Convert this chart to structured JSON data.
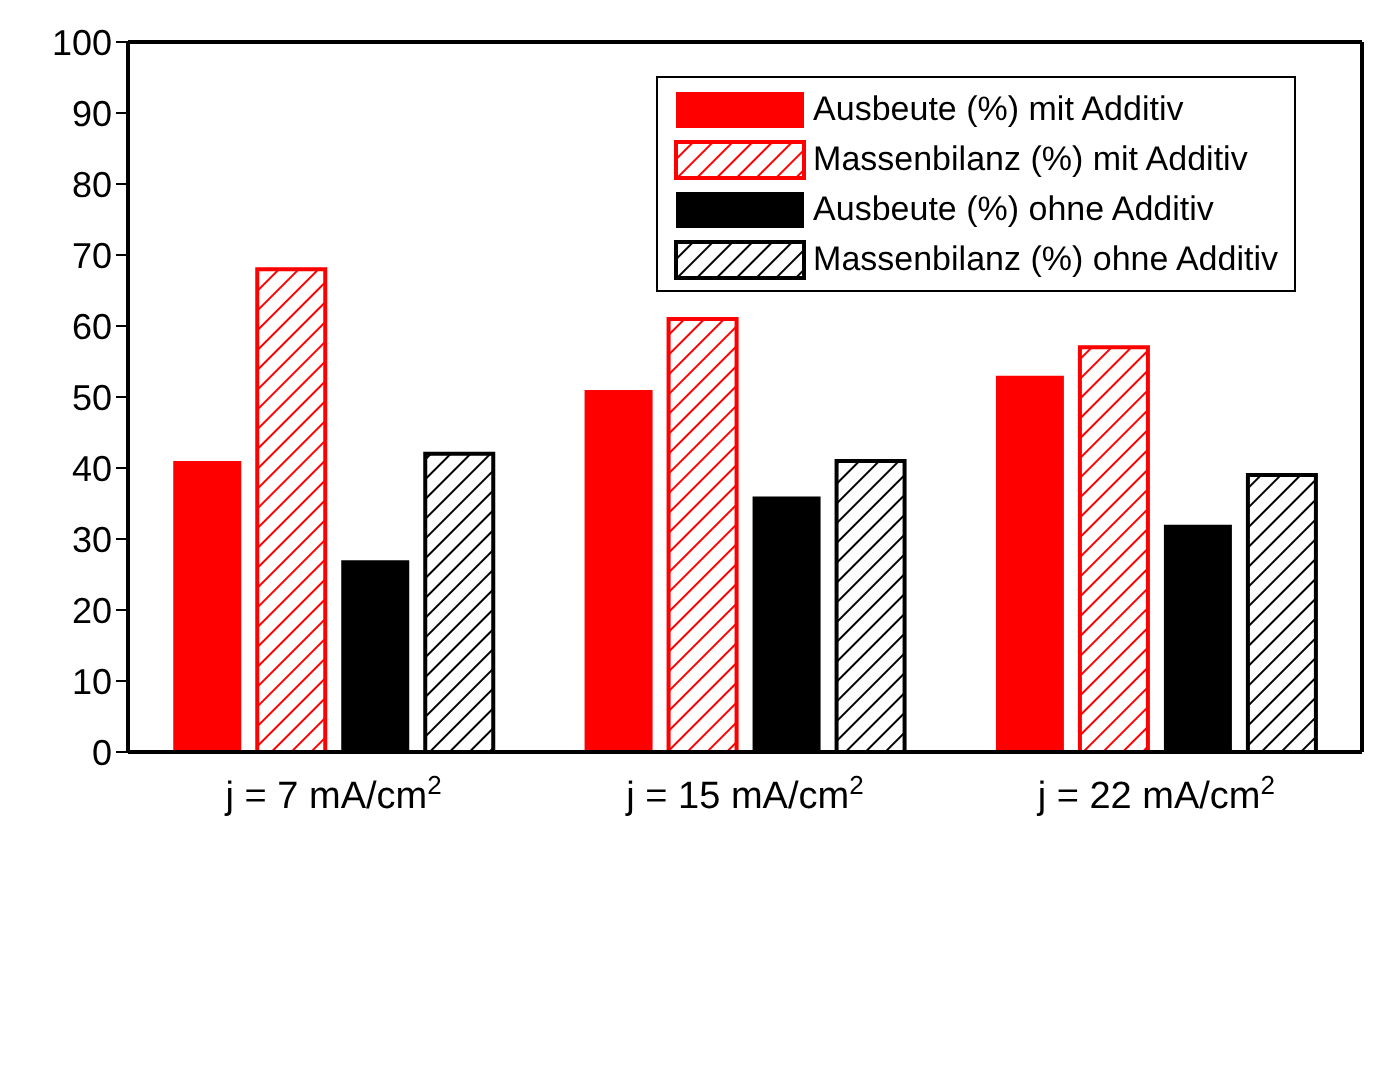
{
  "chart_data": {
    "type": "bar",
    "categories": [
      "j = 7 mA/cm$^{2}$",
      "j = 15 mA/cm$^{2}$",
      "j = 22 mA/cm$^{2}$"
    ],
    "series": [
      {
        "name": "Ausbeute (%) mit Additiv",
        "color": "#ff0000",
        "values": [
          41,
          51,
          53
        ]
      },
      {
        "name": "Massenbilanz (%) mit Additiv",
        "color": "#ff0000",
        "values": [
          68,
          61,
          57
        ]
      },
      {
        "name": "Ausbeute (%) ohne Additiv",
        "color": "#000000",
        "values": [
          27,
          36,
          32
        ]
      },
      {
        "name": "Massenbilanz (%) ohne Additiv",
        "color": "#000000",
        "values": [
          42,
          41,
          39
        ]
      }
    ],
    "ylim": [
      0,
      100
    ],
    "yticks": [
      0,
      10,
      20,
      30,
      40,
      50,
      60,
      70,
      80,
      90,
      100
    ],
    "grid": false,
    "legend": "top right"
  }
}
